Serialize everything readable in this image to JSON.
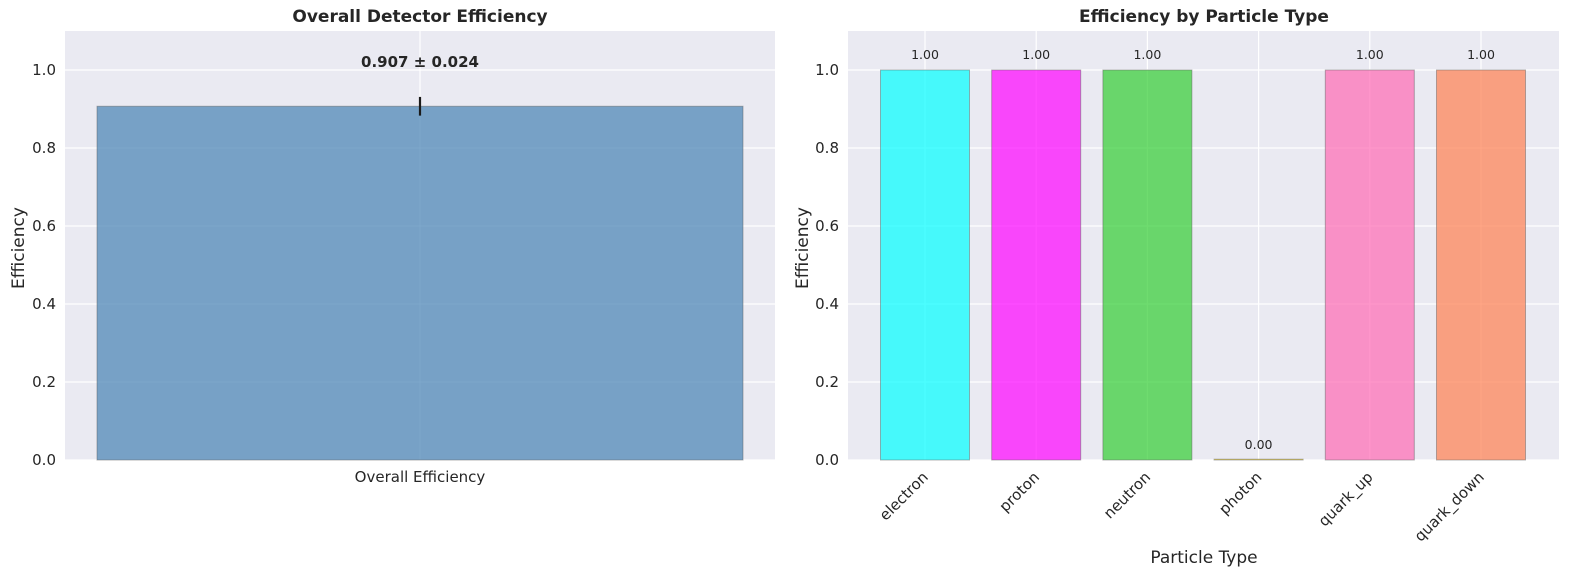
{
  "chart_data": [
    {
      "type": "bar",
      "title": "Overall Detector Efficiency",
      "xlabel": "",
      "ylabel": "Efficiency",
      "ylim": [
        0,
        1.1
      ],
      "yticks": [
        "0.0",
        "0.2",
        "0.4",
        "0.6",
        "0.8",
        "1.0"
      ],
      "categories": [
        "Overall Efficiency"
      ],
      "values": [
        0.907
      ],
      "errors": [
        0.024
      ],
      "value_labels": [
        "0.907 ± 0.024"
      ],
      "colors": [
        "#4682b4"
      ],
      "grid": true
    },
    {
      "type": "bar",
      "title": "Efficiency by Particle Type",
      "xlabel": "Particle Type",
      "ylabel": "Efficiency",
      "ylim": [
        0,
        1.1
      ],
      "yticks": [
        "0.0",
        "0.2",
        "0.4",
        "0.6",
        "0.8",
        "1.0"
      ],
      "categories": [
        "electron",
        "proton",
        "neutron",
        "photon",
        "quark_up",
        "quark_down"
      ],
      "values": [
        1.0,
        1.0,
        1.0,
        0.0,
        1.0,
        1.0
      ],
      "value_labels": [
        "1.00",
        "1.00",
        "1.00",
        "0.00",
        "1.00",
        "1.00"
      ],
      "colors": [
        "#00ffff",
        "#ff00ff",
        "#32cd32",
        "#ffd700",
        "#ff69b4",
        "#ff7f50"
      ],
      "grid": true
    }
  ],
  "theme": {
    "plot_background": "#eaeaf2",
    "grid_color": "#ffffff",
    "text_color": "#262626"
  }
}
